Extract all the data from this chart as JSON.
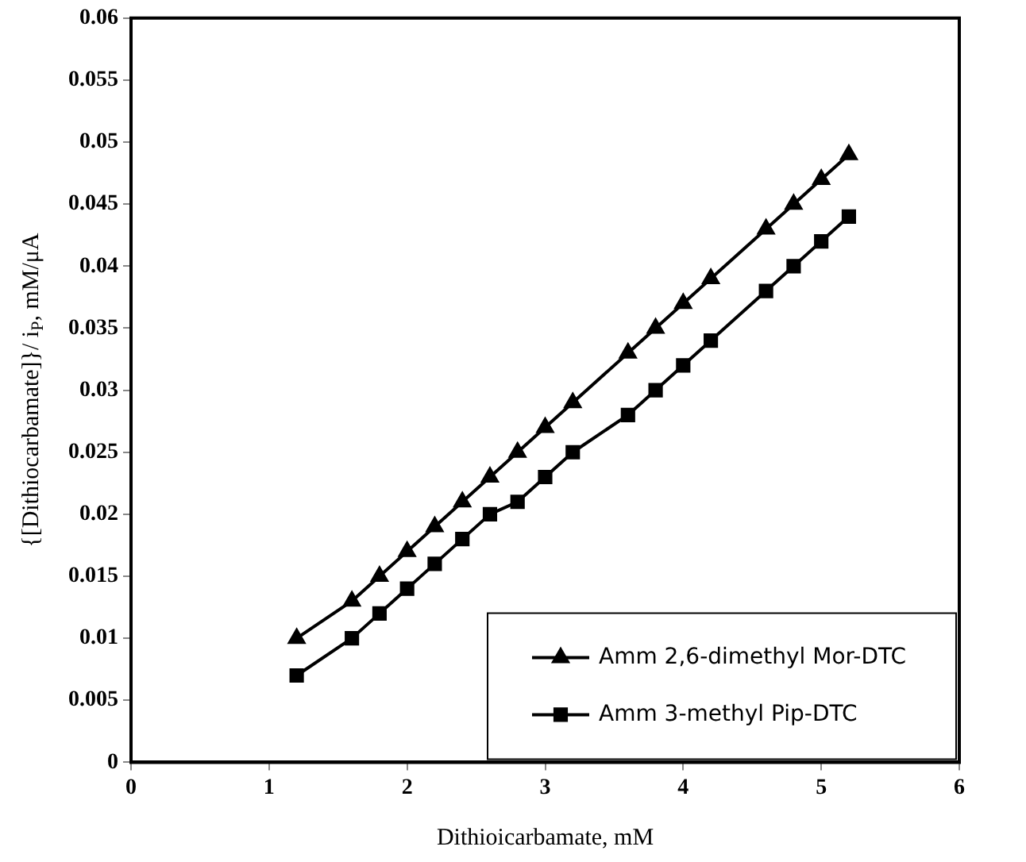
{
  "chart_data": {
    "type": "line",
    "xlabel": "Dithioicarbamate, mM",
    "ylabel": "{[Dithiocarbamate]}/ i$_{P}$, mM/μA",
    "x": [
      1.2,
      1.6,
      1.8,
      2.0,
      2.2,
      2.4,
      2.6,
      2.8,
      3.0,
      3.2,
      3.6,
      3.8,
      4.0,
      4.2,
      4.6,
      4.8,
      5.0,
      5.2
    ],
    "series": [
      {
        "name": "Amm 2,6-dimethyl Mor-DTC",
        "color": "#000000",
        "marker": "triangle",
        "values": [
          0.01,
          0.013,
          0.015,
          0.017,
          0.019,
          0.021,
          0.023,
          0.025,
          0.027,
          0.029,
          0.033,
          0.035,
          0.037,
          0.039,
          0.043,
          0.045,
          0.047,
          0.049
        ]
      },
      {
        "name": "Amm 3-methyl Pip-DTC",
        "color": "#000000",
        "marker": "square",
        "values": [
          0.007,
          0.01,
          0.012,
          0.014,
          0.016,
          0.018,
          0.02,
          0.021,
          0.023,
          0.025,
          0.028,
          0.03,
          0.032,
          0.034,
          0.038,
          0.04,
          0.042,
          0.044
        ]
      }
    ],
    "xlim": [
      0,
      6
    ],
    "xticks": [
      0,
      1,
      2,
      3,
      4,
      5,
      6
    ],
    "ylim": [
      0,
      0.06
    ],
    "yticks": [
      0,
      0.005,
      0.01,
      0.015,
      0.02,
      0.025,
      0.03,
      0.035,
      0.04,
      0.045,
      0.05,
      0.055,
      0.06
    ],
    "grid": false,
    "legend": "bottom right",
    "line_style": "solid"
  }
}
